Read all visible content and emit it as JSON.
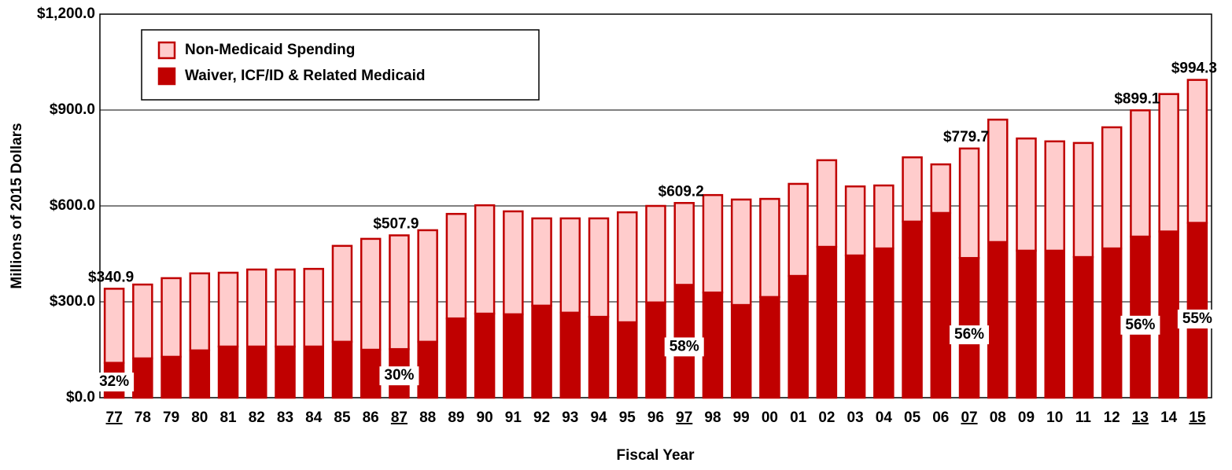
{
  "chart_data": {
    "type": "stacked_bar",
    "y_axis_label": "Millions of 2015 Dollars",
    "x_axis_label": "Fiscal Year",
    "categories": [
      "77",
      "78",
      "79",
      "80",
      "81",
      "82",
      "83",
      "84",
      "85",
      "86",
      "87",
      "88",
      "89",
      "90",
      "91",
      "92",
      "93",
      "94",
      "95",
      "96",
      "97",
      "98",
      "99",
      "00",
      "01",
      "02",
      "03",
      "04",
      "05",
      "06",
      "07",
      "08",
      "09",
      "10",
      "11",
      "12",
      "13",
      "14",
      "15"
    ],
    "series": [
      {
        "name": "Waiver, ICF/ID & Related Medicaid",
        "color": "#c00000",
        "values": [
          109,
          123,
          128,
          148,
          160,
          160,
          160,
          160,
          175,
          150,
          152,
          175,
          248,
          263,
          261,
          288,
          266,
          253,
          236,
          298,
          353,
          329,
          290,
          315,
          381,
          472,
          445,
          467,
          551,
          578,
          437,
          487,
          460,
          460,
          440,
          467,
          504,
          520,
          547
        ]
      },
      {
        "name": "Non-Medicaid Spending",
        "color": "#ffcccc",
        "values": [
          231.9,
          231,
          246,
          241,
          231,
          241,
          241,
          243,
          300,
          347,
          355.9,
          349,
          327,
          339,
          322,
          273,
          295,
          308,
          344,
          302,
          256.2,
          305,
          330,
          307,
          288,
          271,
          216,
          197,
          201,
          152,
          342.7,
          383,
          351,
          342,
          357,
          379,
          395.1,
          430,
          447.3
        ]
      }
    ],
    "totals": {
      "categories": [
        "77",
        "87",
        "97",
        "07",
        "13",
        "15"
      ],
      "values": [
        340.9,
        507.9,
        609.2,
        779.7,
        899.1,
        994.3
      ],
      "value_labels": [
        "$340.9",
        "$507.9",
        "$609.2",
        "$779.7",
        "$899.1",
        "$994.3"
      ]
    },
    "medicaid_share": {
      "categories": [
        "77",
        "87",
        "97",
        "07",
        "13",
        "15"
      ],
      "values": [
        32,
        30,
        58,
        56,
        56,
        55
      ],
      "value_labels": [
        "32%",
        "30%",
        "58%",
        "56%",
        "56%",
        "55%"
      ]
    },
    "ylim": [
      0,
      1200
    ],
    "yticks": [
      {
        "value": 0,
        "label": "$0.0"
      },
      {
        "value": 300,
        "label": "$300.0"
      },
      {
        "value": 600,
        "label": "$600.0"
      },
      {
        "value": 900,
        "label": "$900.0"
      },
      {
        "value": 1200,
        "label": "$1,200.0"
      }
    ],
    "grid": true,
    "legend": "upper left"
  }
}
